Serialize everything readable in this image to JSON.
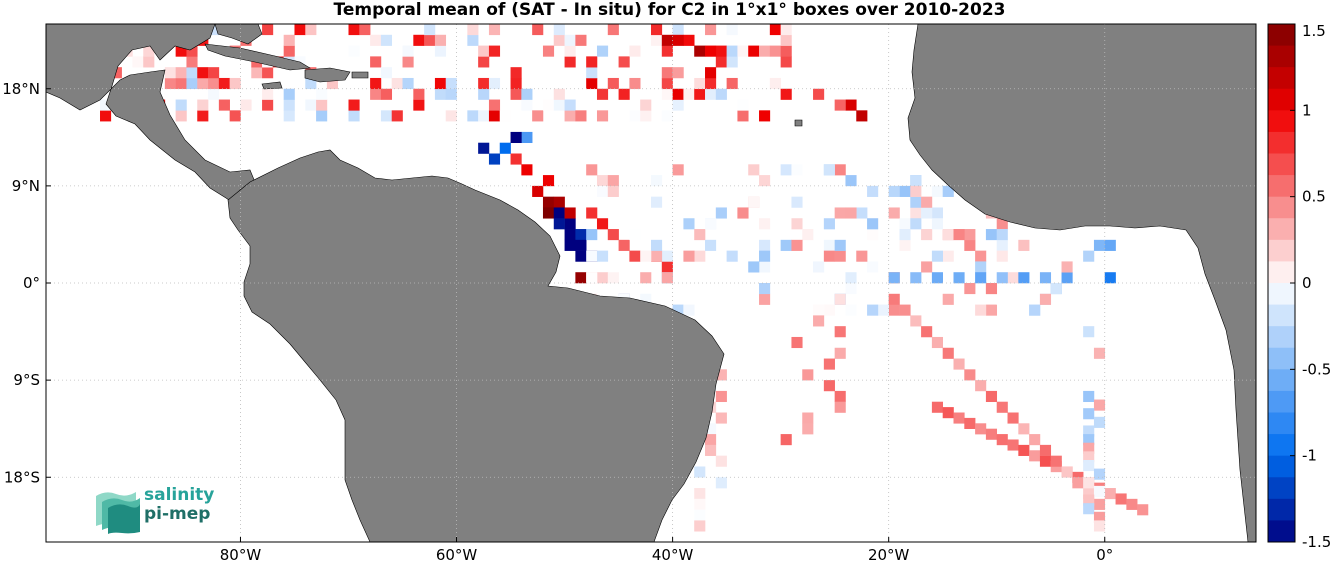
{
  "title": "Temporal mean of (SAT - In situ) for C2 in 1°x1° boxes over 2010-2023",
  "map": {
    "lon_range": [
      -98,
      14
    ],
    "lat_range": [
      -24,
      24
    ],
    "x_ticks": [
      {
        "lon": -80,
        "label": "80°W"
      },
      {
        "lon": -60,
        "label": "60°W"
      },
      {
        "lon": -40,
        "label": "40°W"
      },
      {
        "lon": -20,
        "label": "20°W"
      },
      {
        "lon": 0,
        "label": "0°"
      }
    ],
    "y_ticks": [
      {
        "lat": 18,
        "label": "18°N"
      },
      {
        "lat": 9,
        "label": "9°N"
      },
      {
        "lat": 0,
        "label": "0°"
      },
      {
        "lat": -9,
        "label": "9°S"
      },
      {
        "lat": -18,
        "label": "18°S"
      }
    ],
    "land_color": "#808080",
    "grid": "dotted"
  },
  "colorbar": {
    "min": -1.5,
    "max": 1.5,
    "ticks": [
      "1.5",
      "1",
      "0.5",
      "0",
      "-0.5",
      "-1",
      "-1.5"
    ],
    "low_color": "#00007f",
    "mid_color": "#ffffff",
    "high_color": "#7f0000"
  },
  "logo": {
    "line1": "salinity",
    "line2": "pi-mep"
  }
}
